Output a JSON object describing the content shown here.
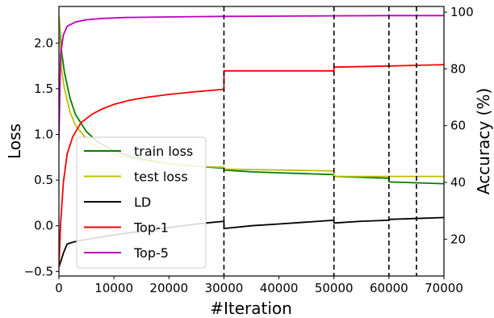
{
  "chart_data": {
    "type": "line",
    "xlabel": "#Iteration",
    "ylabel_left": "Loss",
    "ylabel_right": "Accuracy (%)",
    "xlim": [
      0,
      70000
    ],
    "ylim_left": [
      -0.55,
      2.4
    ],
    "ylim_right": [
      7,
      102
    ],
    "xticks": [
      "0",
      "10000",
      "20000",
      "30000",
      "40000",
      "50000",
      "60000",
      "70000"
    ],
    "yticks_left": [
      "−0.5",
      "0.0",
      "0.5",
      "1.0",
      "1.5",
      "2.0"
    ],
    "yticks_right": [
      "20",
      "40",
      "60",
      "80",
      "100"
    ],
    "vlines": [
      30000,
      50000,
      60000,
      65000
    ],
    "grid": false,
    "legend_position": "lower-left",
    "series": [
      {
        "name": "train loss",
        "axis": "left",
        "color": "#008000",
        "x": [
          0,
          500,
          1000,
          2000,
          3000,
          5000,
          7000,
          10000,
          13000,
          16000,
          20000,
          25000,
          29990,
          30010,
          35000,
          40000,
          45000,
          49990,
          50010,
          55000,
          59990,
          60010,
          65000,
          70000
        ],
        "y": [
          2.3,
          1.9,
          1.68,
          1.4,
          1.22,
          1.03,
          0.92,
          0.82,
          0.76,
          0.72,
          0.68,
          0.65,
          0.63,
          0.61,
          0.59,
          0.58,
          0.57,
          0.56,
          0.54,
          0.53,
          0.52,
          0.48,
          0.47,
          0.46
        ]
      },
      {
        "name": "test loss",
        "axis": "left",
        "color": "#bfbf00",
        "x": [
          0,
          500,
          1000,
          2000,
          3000,
          5000,
          7000,
          10000,
          15000,
          20000,
          25000,
          29990,
          30010,
          40000,
          49990,
          50010,
          60000,
          70000
        ],
        "y": [
          2.3,
          1.7,
          1.5,
          1.25,
          1.1,
          0.95,
          0.86,
          0.78,
          0.72,
          0.68,
          0.65,
          0.64,
          0.62,
          0.61,
          0.6,
          0.54,
          0.54,
          0.54
        ]
      },
      {
        "name": "LD",
        "axis": "left",
        "color": "#000000",
        "x": [
          0,
          300,
          800,
          1500,
          2500,
          4000,
          6000,
          8000,
          10000,
          15000,
          20000,
          25000,
          29990,
          30010,
          35000,
          40000,
          45000,
          49990,
          50010,
          55000,
          59990,
          60010,
          65000,
          70000
        ],
        "y": [
          -0.45,
          -0.4,
          -0.3,
          -0.2,
          -0.18,
          -0.16,
          -0.14,
          -0.12,
          -0.1,
          -0.06,
          -0.02,
          0.02,
          0.05,
          -0.03,
          0.0,
          0.02,
          0.04,
          0.06,
          0.03,
          0.05,
          0.06,
          0.07,
          0.08,
          0.09
        ]
      },
      {
        "name": "Top-1",
        "axis": "right",
        "color": "#ff0000",
        "x": [
          0,
          300,
          800,
          1500,
          2500,
          4000,
          6000,
          8000,
          10000,
          13000,
          16000,
          20000,
          25000,
          29990,
          30010,
          40000,
          49990,
          50010,
          60000,
          70000
        ],
        "y": [
          10,
          25,
          40,
          50,
          56,
          61,
          64,
          66,
          67.5,
          69,
          70,
          71,
          72,
          72.8,
          79.3,
          79.3,
          79.3,
          80.6,
          81,
          81.5
        ]
      },
      {
        "name": "Top-5",
        "axis": "right",
        "color": "#bf00bf",
        "x": [
          0,
          300,
          800,
          1500,
          3000,
          5000,
          8000,
          12000,
          20000,
          30000,
          40000,
          50000,
          60000,
          70000
        ],
        "y": [
          55,
          85,
          92,
          95,
          96.5,
          97.3,
          97.8,
          98.1,
          98.3,
          98.5,
          98.6,
          98.7,
          98.8,
          98.8
        ]
      }
    ]
  }
}
